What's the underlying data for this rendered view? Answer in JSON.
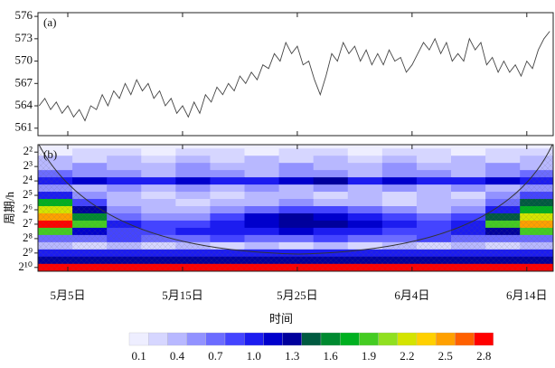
{
  "chart_data": [
    {
      "type": "line",
      "label": "(a)",
      "xlim": [
        -2.6,
        42.3
      ],
      "ylim": [
        560,
        576.5
      ],
      "yticks": [
        561,
        564,
        567,
        570,
        573,
        576
      ],
      "color": "#444444",
      "x": [
        -2.5,
        -2,
        -1.5,
        -1,
        -0.5,
        0,
        0.5,
        1,
        1.5,
        2,
        2.5,
        3,
        3.5,
        4,
        4.5,
        5,
        5.5,
        6,
        6.5,
        7,
        7.5,
        8,
        8.5,
        9,
        9.5,
        10,
        10.5,
        11,
        11.5,
        12,
        12.5,
        13,
        13.5,
        14,
        14.5,
        15,
        15.5,
        16,
        16.5,
        17,
        17.5,
        18,
        18.5,
        19,
        19.5,
        20,
        20.5,
        21,
        21.5,
        22,
        22.5,
        23,
        23.5,
        24,
        24.5,
        25,
        25.5,
        26,
        26.5,
        27,
        27.5,
        28,
        28.5,
        29,
        29.5,
        30,
        30.5,
        31,
        31.5,
        32,
        32.5,
        33,
        33.5,
        34,
        34.5,
        35,
        35.5,
        36,
        36.5,
        37,
        37.5,
        38,
        38.5,
        39,
        39.5,
        40,
        40.5,
        41,
        41.5,
        42
      ],
      "values": [
        564,
        565,
        563.5,
        564.5,
        563,
        564,
        562.5,
        563.5,
        562,
        564,
        563.5,
        565.5,
        564,
        566,
        565,
        567,
        565.5,
        567.5,
        566,
        567,
        565,
        566,
        564,
        565,
        563,
        564,
        562.5,
        564.5,
        563,
        565.5,
        564.5,
        566.5,
        565.5,
        567,
        566,
        568,
        567,
        568.5,
        567.5,
        569.5,
        569,
        571,
        570,
        572.5,
        571,
        572,
        569.5,
        570,
        567.5,
        565.5,
        568,
        571,
        570,
        572.5,
        571,
        572,
        570,
        571.5,
        569.5,
        571,
        569.5,
        571.5,
        570,
        570.5,
        568.5,
        569.5,
        571,
        572.5,
        571.5,
        573,
        571,
        572.5,
        570,
        571,
        570,
        573,
        571.5,
        572.5,
        569.5,
        570.5,
        568.5,
        570,
        568.5,
        569.5,
        568,
        570,
        569,
        571.5,
        573,
        574
      ]
    },
    {
      "type": "heatmap",
      "label": "(b)",
      "ylabel": "周期/h",
      "xlabel": "时间",
      "xlim": [
        -2.6,
        42.3
      ],
      "ylim": [
        2.8,
        1230
      ],
      "yscale": "log",
      "yreverse": true,
      "xticks": [
        {
          "value": 0,
          "label": "5月5日"
        },
        {
          "value": 10,
          "label": "5月15日"
        },
        {
          "value": 20,
          "label": "5月25日"
        },
        {
          "value": 30,
          "label": "6月4日"
        },
        {
          "value": 40,
          "label": "6月14日"
        }
      ],
      "yticks": [
        {
          "value": 4,
          "label": "2²"
        },
        {
          "value": 8,
          "label": "2³"
        },
        {
          "value": 16,
          "label": "2⁴"
        },
        {
          "value": 32,
          "label": "2⁵"
        },
        {
          "value": 64,
          "label": "2⁶"
        },
        {
          "value": 128,
          "label": "2⁷"
        },
        {
          "value": 256,
          "label": "2⁸"
        },
        {
          "value": 512,
          "label": "2⁹"
        },
        {
          "value": 1024,
          "label": "2¹⁰"
        }
      ],
      "x": [
        -1.1,
        1.9,
        4.9,
        7.9,
        10.9,
        13.9,
        16.9,
        19.9,
        22.9,
        25.9,
        28.9,
        31.9,
        34.9,
        37.9,
        40.9
      ],
      "y": [
        4,
        5.66,
        8,
        11.31,
        16,
        22.63,
        32,
        45.25,
        64,
        90.51,
        128,
        181.02,
        256,
        362.04,
        512,
        724.08,
        1024
      ],
      "z": [
        [
          0.1,
          0.25,
          0.25,
          0.1,
          0.25,
          0.25,
          0.1,
          0.25,
          0.25,
          0.1,
          0.25,
          0.25,
          0.1,
          0.25,
          0.25
        ],
        [
          0.4,
          0.25,
          0.4,
          0.25,
          0.4,
          0.25,
          0.4,
          0.25,
          0.4,
          0.25,
          0.4,
          0.25,
          0.4,
          0.25,
          0.4
        ],
        [
          0.4,
          0.55,
          0.4,
          0.4,
          0.55,
          0.4,
          0.4,
          0.55,
          0.4,
          0.4,
          0.55,
          0.4,
          0.4,
          0.55,
          0.4
        ],
        [
          0.7,
          0.55,
          0.55,
          0.4,
          0.55,
          0.55,
          0.4,
          0.55,
          0.55,
          0.4,
          0.55,
          0.55,
          0.4,
          0.55,
          0.7
        ],
        [
          1.0,
          1.15,
          1.0,
          1.0,
          1.15,
          1.0,
          1.0,
          1.15,
          1.3,
          1.0,
          1.15,
          1.0,
          1.0,
          1.15,
          1.0
        ],
        [
          0.55,
          0.4,
          0.55,
          0.4,
          0.55,
          0.4,
          0.55,
          0.4,
          0.55,
          0.4,
          0.55,
          0.4,
          0.55,
          0.4,
          0.55
        ],
        [
          1.0,
          0.55,
          0.4,
          0.25,
          0.4,
          0.25,
          0.4,
          0.4,
          0.25,
          0.4,
          0.25,
          0.4,
          0.25,
          0.55,
          0.85
        ],
        [
          1.75,
          0.85,
          0.4,
          0.4,
          0.25,
          0.4,
          0.4,
          0.55,
          0.4,
          0.4,
          0.25,
          0.4,
          0.4,
          0.7,
          1.45
        ],
        [
          2.2,
          1.3,
          0.55,
          0.4,
          0.4,
          0.55,
          0.7,
          0.85,
          0.85,
          0.7,
          0.55,
          0.4,
          0.55,
          1.0,
          1.75
        ],
        [
          2.5,
          1.6,
          0.7,
          0.55,
          0.55,
          0.85,
          1.15,
          1.3,
          1.15,
          1.0,
          0.85,
          0.7,
          0.85,
          1.45,
          2.2
        ],
        [
          2.8,
          1.9,
          1.0,
          0.85,
          0.85,
          1.0,
          1.15,
          1.3,
          1.3,
          1.15,
          1.0,
          0.85,
          1.0,
          1.9,
          2.5
        ],
        [
          1.9,
          1.15,
          0.85,
          0.85,
          1.0,
          1.0,
          1.0,
          1.15,
          1.0,
          1.0,
          0.85,
          0.85,
          1.0,
          1.3,
          1.9
        ],
        [
          0.7,
          0.7,
          0.85,
          0.7,
          0.7,
          0.85,
          0.7,
          0.7,
          0.85,
          0.7,
          0.7,
          0.85,
          0.7,
          0.7,
          0.7
        ],
        [
          0.4,
          0.25,
          0.4,
          0.25,
          0.4,
          0.25,
          0.4,
          0.25,
          0.4,
          0.25,
          0.4,
          0.25,
          0.4,
          0.25,
          0.4
        ],
        [
          1.0,
          1.0,
          1.0,
          1.0,
          1.0,
          1.0,
          1.0,
          1.0,
          1.0,
          1.0,
          1.0,
          1.0,
          1.0,
          1.0,
          1.0
        ],
        [
          1.3,
          1.3,
          1.3,
          1.3,
          1.3,
          1.3,
          1.3,
          1.3,
          1.3,
          1.3,
          1.3,
          1.3,
          1.3,
          1.3,
          1.3
        ],
        [
          2.8,
          2.8,
          2.8,
          2.8,
          2.8,
          2.8,
          2.8,
          2.8,
          2.8,
          2.8,
          2.8,
          2.8,
          2.8,
          2.8,
          2.8
        ]
      ],
      "colorbar": {
        "levels": [
          0.1,
          0.25,
          0.4,
          0.55,
          0.7,
          0.85,
          1.0,
          1.15,
          1.3,
          1.45,
          1.6,
          1.75,
          1.9,
          2.05,
          2.2,
          2.35,
          2.5,
          2.65,
          2.8
        ],
        "colors": [
          "#eeeeff",
          "#d6d6ff",
          "#b8b8ff",
          "#9292ff",
          "#6c6cff",
          "#4444ff",
          "#1c1cf0",
          "#0000cc",
          "#00009c",
          "#005a40",
          "#008a30",
          "#00b020",
          "#44cc22",
          "#90e020",
          "#d4e400",
          "#ffd000",
          "#ffa000",
          "#ff6000",
          "#ff0000"
        ],
        "ticks": [
          0.1,
          0.4,
          0.7,
          {
            "value": 1,
            "label": "1.0"
          },
          1.3,
          1.6,
          1.9,
          2.2,
          2.5,
          2.8
        ]
      }
    }
  ]
}
